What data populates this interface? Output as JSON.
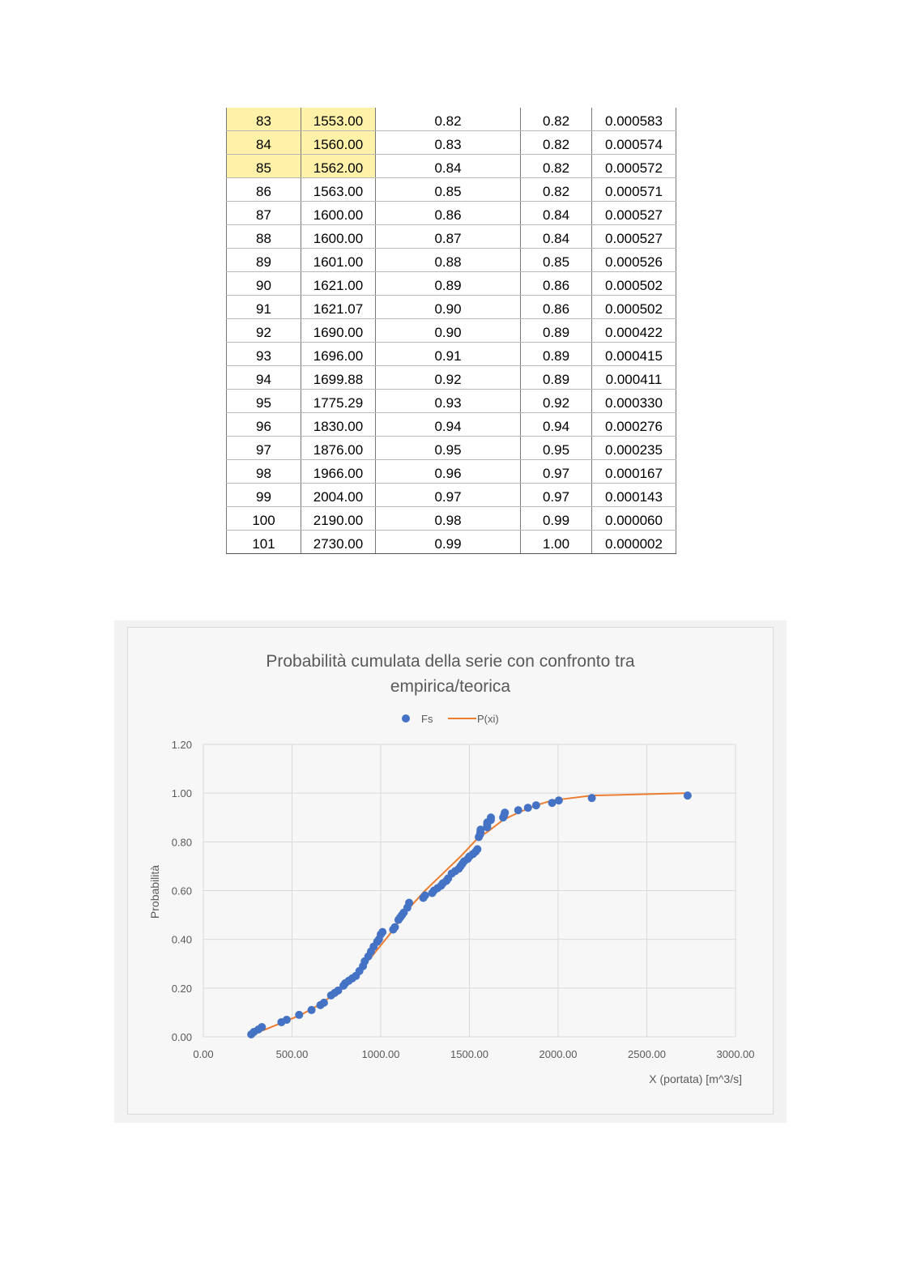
{
  "table": {
    "rows": [
      [
        "83",
        "1553.00",
        "0.82",
        "0.82",
        "0.000583"
      ],
      [
        "84",
        "1560.00",
        "0.83",
        "0.82",
        "0.000574"
      ],
      [
        "85",
        "1562.00",
        "0.84",
        "0.82",
        "0.000572"
      ],
      [
        "86",
        "1563.00",
        "0.85",
        "0.82",
        "0.000571"
      ],
      [
        "87",
        "1600.00",
        "0.86",
        "0.84",
        "0.000527"
      ],
      [
        "88",
        "1600.00",
        "0.87",
        "0.84",
        "0.000527"
      ],
      [
        "89",
        "1601.00",
        "0.88",
        "0.85",
        "0.000526"
      ],
      [
        "90",
        "1621.00",
        "0.89",
        "0.86",
        "0.000502"
      ],
      [
        "91",
        "1621.07",
        "0.90",
        "0.86",
        "0.000502"
      ],
      [
        "92",
        "1690.00",
        "0.90",
        "0.89",
        "0.000422"
      ],
      [
        "93",
        "1696.00",
        "0.91",
        "0.89",
        "0.000415"
      ],
      [
        "94",
        "1699.88",
        "0.92",
        "0.89",
        "0.000411"
      ],
      [
        "95",
        "1775.29",
        "0.93",
        "0.92",
        "0.000330"
      ],
      [
        "96",
        "1830.00",
        "0.94",
        "0.94",
        "0.000276"
      ],
      [
        "97",
        "1876.00",
        "0.95",
        "0.95",
        "0.000235"
      ],
      [
        "98",
        "1966.00",
        "0.96",
        "0.97",
        "0.000167"
      ],
      [
        "99",
        "2004.00",
        "0.97",
        "0.97",
        "0.000143"
      ],
      [
        "100",
        "2190.00",
        "0.98",
        "0.99",
        "0.000060"
      ],
      [
        "101",
        "2730.00",
        "0.99",
        "1.00",
        "0.000002"
      ]
    ],
    "highlight_color": "#fff2a8"
  },
  "chart_data": {
    "type": "scatter",
    "title": "Probabilità cumulata della serie con confronto tra empirica/teorica",
    "title_lines": [
      "Probabilità cumulata della serie con confronto tra",
      "empirica/teorica"
    ],
    "xlabel": "X (portata) [m^3/s]",
    "ylabel": "Probabilità",
    "xlim": [
      0,
      3000
    ],
    "ylim": [
      0,
      1.2
    ],
    "x_ticks": [
      "0.00",
      "500.00",
      "1000.00",
      "1500.00",
      "2000.00",
      "2500.00",
      "3000.00"
    ],
    "y_ticks": [
      "0.00",
      "0.20",
      "0.40",
      "0.60",
      "0.80",
      "1.00",
      "1.20"
    ],
    "grid": true,
    "legend_position": "top",
    "series": [
      {
        "name": "Fs",
        "kind": "scatter",
        "color": "#4472c4",
        "points": [
          [
            270,
            0.01
          ],
          [
            285,
            0.02
          ],
          [
            310,
            0.03
          ],
          [
            330,
            0.04
          ],
          [
            440,
            0.06
          ],
          [
            470,
            0.07
          ],
          [
            540,
            0.09
          ],
          [
            610,
            0.11
          ],
          [
            660,
            0.13
          ],
          [
            680,
            0.14
          ],
          [
            720,
            0.17
          ],
          [
            740,
            0.18
          ],
          [
            760,
            0.19
          ],
          [
            790,
            0.21
          ],
          [
            800,
            0.22
          ],
          [
            820,
            0.23
          ],
          [
            840,
            0.24
          ],
          [
            860,
            0.25
          ],
          [
            880,
            0.27
          ],
          [
            900,
            0.29
          ],
          [
            910,
            0.31
          ],
          [
            930,
            0.33
          ],
          [
            945,
            0.35
          ],
          [
            960,
            0.37
          ],
          [
            980,
            0.39
          ],
          [
            990,
            0.4
          ],
          [
            1000,
            0.42
          ],
          [
            1010,
            0.43
          ],
          [
            1070,
            0.44
          ],
          [
            1080,
            0.45
          ],
          [
            1100,
            0.48
          ],
          [
            1110,
            0.49
          ],
          [
            1120,
            0.5
          ],
          [
            1130,
            0.51
          ],
          [
            1150,
            0.53
          ],
          [
            1160,
            0.55
          ],
          [
            1240,
            0.57
          ],
          [
            1250,
            0.58
          ],
          [
            1290,
            0.59
          ],
          [
            1300,
            0.6
          ],
          [
            1320,
            0.61
          ],
          [
            1340,
            0.62
          ],
          [
            1350,
            0.63
          ],
          [
            1370,
            0.64
          ],
          [
            1380,
            0.65
          ],
          [
            1400,
            0.67
          ],
          [
            1420,
            0.68
          ],
          [
            1440,
            0.69
          ],
          [
            1450,
            0.7
          ],
          [
            1460,
            0.71
          ],
          [
            1470,
            0.72
          ],
          [
            1490,
            0.73
          ],
          [
            1500,
            0.74
          ],
          [
            1520,
            0.75
          ],
          [
            1535,
            0.76
          ],
          [
            1545,
            0.77
          ],
          [
            1553,
            0.82
          ],
          [
            1560,
            0.83
          ],
          [
            1562,
            0.84
          ],
          [
            1563,
            0.85
          ],
          [
            1600,
            0.86
          ],
          [
            1600,
            0.87
          ],
          [
            1601,
            0.88
          ],
          [
            1621,
            0.89
          ],
          [
            1621.07,
            0.9
          ],
          [
            1690,
            0.9
          ],
          [
            1696,
            0.91
          ],
          [
            1699.88,
            0.92
          ],
          [
            1775.29,
            0.93
          ],
          [
            1830,
            0.94
          ],
          [
            1876,
            0.95
          ],
          [
            1966,
            0.96
          ],
          [
            2004,
            0.97
          ],
          [
            2190,
            0.98
          ],
          [
            2730,
            0.99
          ]
        ]
      },
      {
        "name": "P(xi)",
        "kind": "line",
        "color": "#ed7d31",
        "points": [
          [
            270,
            0.01
          ],
          [
            350,
            0.03
          ],
          [
            450,
            0.06
          ],
          [
            550,
            0.09
          ],
          [
            650,
            0.13
          ],
          [
            750,
            0.18
          ],
          [
            850,
            0.25
          ],
          [
            950,
            0.33
          ],
          [
            1050,
            0.42
          ],
          [
            1150,
            0.52
          ],
          [
            1250,
            0.6
          ],
          [
            1350,
            0.67
          ],
          [
            1450,
            0.74
          ],
          [
            1553,
            0.82
          ],
          [
            1600,
            0.84
          ],
          [
            1690,
            0.89
          ],
          [
            1775.29,
            0.92
          ],
          [
            1876,
            0.95
          ],
          [
            1966,
            0.97
          ],
          [
            2190,
            0.99
          ],
          [
            2730,
            1.0
          ]
        ]
      }
    ]
  }
}
